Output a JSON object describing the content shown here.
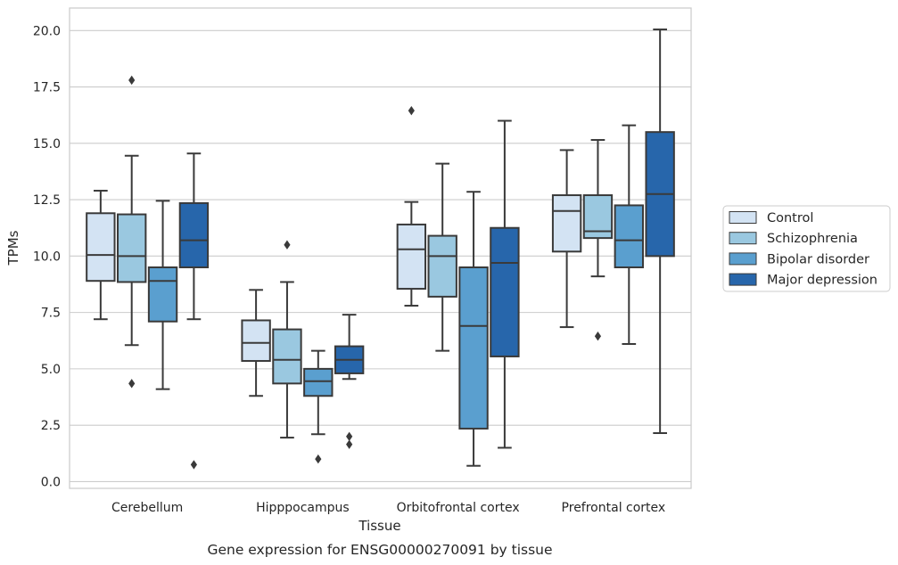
{
  "chart_data": {
    "type": "boxplot",
    "caption": "Gene expression for ENSG00000270091 by tissue",
    "xlabel": "Tissue",
    "ylabel": "TPMs",
    "ylim": [
      -0.3,
      21.0
    ],
    "yticks": [
      0.0,
      2.5,
      5.0,
      7.5,
      10.0,
      12.5,
      15.0,
      17.5,
      20.0
    ],
    "ytick_labels": [
      "0.0",
      "2.5",
      "5.0",
      "7.5",
      "10.0",
      "12.5",
      "15.0",
      "17.5",
      "20.0"
    ],
    "grid": "horizontal",
    "legend_position": "right",
    "categories": [
      "Cerebellum",
      "Hipppocampus",
      "Orbitofrontal cortex",
      "Prefrontal cortex"
    ],
    "series": [
      {
        "name": "Control",
        "color": "#d3e3f3",
        "boxes": [
          {
            "whislo": 7.2,
            "q1": 8.9,
            "med": 10.05,
            "q3": 11.9,
            "whishi": 12.9,
            "fliers": []
          },
          {
            "whislo": 3.8,
            "q1": 5.35,
            "med": 6.15,
            "q3": 7.15,
            "whishi": 8.5,
            "fliers": []
          },
          {
            "whislo": 7.8,
            "q1": 8.55,
            "med": 10.3,
            "q3": 11.4,
            "whishi": 12.4,
            "fliers": [
              16.45
            ]
          },
          {
            "whislo": 6.85,
            "q1": 10.2,
            "med": 12.0,
            "q3": 12.7,
            "whishi": 14.7,
            "fliers": []
          }
        ]
      },
      {
        "name": "Schizophrenia",
        "color": "#9ac8e0",
        "boxes": [
          {
            "whislo": 6.05,
            "q1": 8.85,
            "med": 10.0,
            "q3": 11.85,
            "whishi": 14.45,
            "fliers": [
              17.8,
              4.35
            ]
          },
          {
            "whislo": 1.95,
            "q1": 4.35,
            "med": 5.4,
            "q3": 6.75,
            "whishi": 8.85,
            "fliers": [
              10.5
            ]
          },
          {
            "whislo": 5.8,
            "q1": 8.2,
            "med": 10.0,
            "q3": 10.9,
            "whishi": 14.1,
            "fliers": []
          },
          {
            "whislo": 9.1,
            "q1": 10.8,
            "med": 11.1,
            "q3": 12.7,
            "whishi": 15.15,
            "fliers": [
              6.45
            ]
          }
        ]
      },
      {
        "name": "Bipolar disorder",
        "color": "#5a9fcf",
        "boxes": [
          {
            "whislo": 4.1,
            "q1": 7.1,
            "med": 8.9,
            "q3": 9.5,
            "whishi": 12.45,
            "fliers": []
          },
          {
            "whislo": 2.1,
            "q1": 3.8,
            "med": 4.45,
            "q3": 5.0,
            "whishi": 5.8,
            "fliers": [
              1.0
            ]
          },
          {
            "whislo": 0.7,
            "q1": 2.35,
            "med": 6.9,
            "q3": 9.5,
            "whishi": 12.85,
            "fliers": []
          },
          {
            "whislo": 6.1,
            "q1": 9.5,
            "med": 10.7,
            "q3": 12.25,
            "whishi": 15.8,
            "fliers": []
          }
        ]
      },
      {
        "name": "Major depression",
        "color": "#2766ab",
        "boxes": [
          {
            "whislo": 7.2,
            "q1": 9.5,
            "med": 10.7,
            "q3": 12.35,
            "whishi": 14.55,
            "fliers": [
              0.75
            ]
          },
          {
            "whislo": 4.55,
            "q1": 4.8,
            "med": 5.4,
            "q3": 6.0,
            "whishi": 7.4,
            "fliers": [
              2.0,
              1.65
            ]
          },
          {
            "whislo": 1.5,
            "q1": 5.55,
            "med": 9.7,
            "q3": 11.25,
            "whishi": 16.0,
            "fliers": []
          },
          {
            "whislo": 2.15,
            "q1": 10.0,
            "med": 12.75,
            "q3": 15.5,
            "whishi": 20.05,
            "fliers": []
          }
        ]
      }
    ]
  }
}
